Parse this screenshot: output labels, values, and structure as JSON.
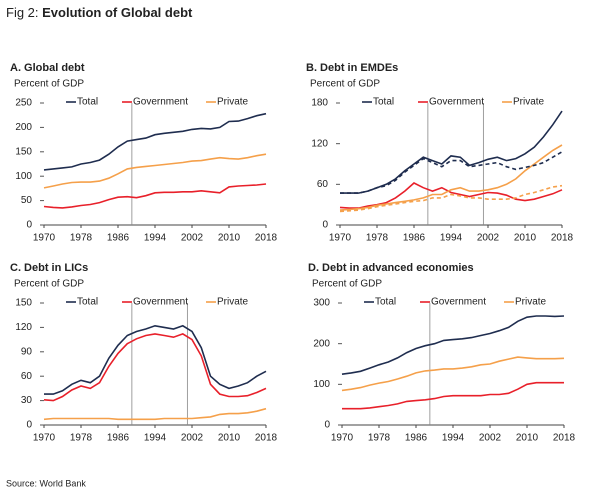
{
  "header": {
    "prefix": "Fig 2:",
    "title": "Evolution of Global debt"
  },
  "source": "Source: World Bank",
  "chart_data": [
    {
      "type": "line",
      "title": "A. Global debt",
      "y_label": "Percent of GDP",
      "x": [
        1970,
        1972,
        1974,
        1976,
        1978,
        1980,
        1982,
        1984,
        1986,
        1988,
        1990,
        1992,
        1994,
        1996,
        1998,
        2000,
        2002,
        2004,
        2006,
        2008,
        2010,
        2012,
        2014,
        2016,
        2018
      ],
      "xlim": [
        1970,
        2018
      ],
      "xticks": [
        1970,
        1978,
        1986,
        1994,
        2002,
        2010,
        2018
      ],
      "ylim": [
        0,
        250
      ],
      "yticks": [
        0,
        50,
        100,
        150,
        200,
        250
      ],
      "vlines": [
        1989
      ],
      "series": [
        {
          "name": "Total",
          "color": "#1f2d4f",
          "values": [
            113,
            115,
            117,
            119,
            125,
            128,
            133,
            145,
            160,
            172,
            175,
            178,
            185,
            188,
            190,
            192,
            196,
            198,
            197,
            200,
            212,
            213,
            218,
            224,
            228
          ]
        },
        {
          "name": "Government",
          "color": "#e8202a",
          "values": [
            38,
            36,
            35,
            37,
            40,
            42,
            46,
            52,
            57,
            58,
            56,
            60,
            66,
            67,
            67,
            68,
            68,
            70,
            68,
            66,
            78,
            80,
            81,
            82,
            84
          ]
        },
        {
          "name": "Private",
          "color": "#f5a04a",
          "values": [
            76,
            80,
            84,
            87,
            88,
            88,
            90,
            96,
            105,
            115,
            118,
            120,
            122,
            124,
            126,
            128,
            131,
            132,
            135,
            138,
            136,
            135,
            138,
            142,
            145
          ]
        }
      ]
    },
    {
      "type": "line",
      "title": "B. Debt in EMDEs",
      "y_label": "Percent of GDP",
      "x": [
        1970,
        1972,
        1974,
        1976,
        1978,
        1980,
        1982,
        1984,
        1986,
        1988,
        1990,
        1992,
        1994,
        1996,
        1998,
        2000,
        2002,
        2004,
        2006,
        2008,
        2010,
        2012,
        2014,
        2016,
        2018
      ],
      "xlim": [
        1970,
        2018
      ],
      "xticks": [
        1970,
        1978,
        1986,
        1994,
        2002,
        2010,
        2018
      ],
      "ylim": [
        0,
        180
      ],
      "yticks": [
        0,
        60,
        120,
        180
      ],
      "vlines": [
        1989,
        2001
      ],
      "series": [
        {
          "name": "Total",
          "color": "#1f2d4f",
          "values": [
            47,
            47,
            47,
            50,
            55,
            60,
            68,
            80,
            90,
            100,
            95,
            90,
            102,
            100,
            88,
            92,
            97,
            100,
            95,
            98,
            105,
            115,
            130,
            148,
            168
          ]
        },
        {
          "name": "Government",
          "color": "#e8202a",
          "values": [
            26,
            25,
            25,
            28,
            30,
            33,
            40,
            50,
            62,
            55,
            50,
            55,
            48,
            45,
            42,
            45,
            48,
            47,
            44,
            38,
            36,
            38,
            42,
            46,
            52
          ]
        },
        {
          "name": "Private",
          "color": "#f5a04a",
          "values": [
            22,
            23,
            24,
            26,
            29,
            31,
            33,
            35,
            37,
            40,
            45,
            45,
            52,
            55,
            50,
            50,
            52,
            55,
            60,
            68,
            80,
            90,
            100,
            110,
            118
          ]
        },
        {
          "color": "#1f2d4f",
          "dash": true,
          "values": [
            47,
            47,
            47,
            50,
            55,
            58,
            66,
            78,
            88,
            98,
            92,
            86,
            95,
            95,
            86,
            88,
            90,
            92,
            86,
            82,
            85,
            88,
            92,
            100,
            108
          ]
        },
        {
          "color": "#f5a04a",
          "dash": true,
          "values": [
            20,
            21,
            22,
            24,
            27,
            29,
            31,
            33,
            35,
            36,
            40,
            40,
            45,
            43,
            40,
            40,
            38,
            38,
            38,
            40,
            45,
            48,
            52,
            56,
            58
          ]
        }
      ]
    },
    {
      "type": "line",
      "title": "C. Debt in LICs",
      "y_label": "Percent of GDP",
      "x": [
        1970,
        1972,
        1974,
        1976,
        1978,
        1980,
        1982,
        1984,
        1986,
        1988,
        1990,
        1992,
        1994,
        1996,
        1998,
        2000,
        2002,
        2004,
        2006,
        2008,
        2010,
        2012,
        2014,
        2016,
        2018
      ],
      "xlim": [
        1970,
        2018
      ],
      "xticks": [
        1970,
        1978,
        1986,
        1994,
        2002,
        2010,
        2018
      ],
      "ylim": [
        0,
        150
      ],
      "yticks": [
        0,
        30,
        60,
        90,
        120,
        150
      ],
      "vlines": [
        1989,
        2001
      ],
      "series": [
        {
          "name": "Total",
          "color": "#1f2d4f",
          "values": [
            38,
            38,
            42,
            50,
            55,
            52,
            60,
            82,
            98,
            110,
            115,
            118,
            122,
            120,
            118,
            122,
            115,
            95,
            60,
            50,
            45,
            48,
            52,
            60,
            66
          ]
        },
        {
          "name": "Government",
          "color": "#e8202a",
          "values": [
            31,
            30,
            35,
            43,
            48,
            45,
            52,
            72,
            88,
            100,
            106,
            110,
            112,
            110,
            108,
            112,
            105,
            85,
            50,
            38,
            35,
            35,
            36,
            40,
            45
          ]
        },
        {
          "name": "Private",
          "color": "#f5a04a",
          "values": [
            7,
            8,
            8,
            8,
            8,
            8,
            8,
            8,
            7,
            7,
            7,
            7,
            7,
            8,
            8,
            8,
            8,
            9,
            10,
            13,
            14,
            14,
            15,
            17,
            20
          ]
        }
      ]
    },
    {
      "type": "line",
      "title": "D. Debt in advanced economies",
      "y_label": "Percent of GDP",
      "x": [
        1970,
        1972,
        1974,
        1976,
        1978,
        1980,
        1982,
        1984,
        1986,
        1988,
        1990,
        1992,
        1994,
        1996,
        1998,
        2000,
        2002,
        2004,
        2006,
        2008,
        2010,
        2012,
        2014,
        2016,
        2018
      ],
      "xlim": [
        1970,
        2018
      ],
      "xticks": [
        1970,
        1978,
        1986,
        1994,
        2002,
        2010,
        2018
      ],
      "ylim": [
        0,
        300
      ],
      "yticks": [
        0,
        100,
        200,
        300
      ],
      "vlines": [
        1989
      ],
      "series": [
        {
          "name": "Total",
          "color": "#1f2d4f",
          "values": [
            125,
            128,
            132,
            140,
            148,
            155,
            165,
            178,
            188,
            195,
            200,
            208,
            210,
            212,
            215,
            220,
            225,
            232,
            240,
            255,
            265,
            268,
            268,
            267,
            268
          ]
        },
        {
          "name": "Government",
          "color": "#e8202a",
          "values": [
            40,
            40,
            40,
            42,
            45,
            48,
            52,
            58,
            60,
            62,
            65,
            70,
            72,
            72,
            72,
            72,
            75,
            75,
            78,
            88,
            100,
            104,
            104,
            104,
            104
          ]
        },
        {
          "name": "Private",
          "color": "#f5a04a",
          "values": [
            85,
            88,
            92,
            98,
            103,
            107,
            113,
            120,
            128,
            133,
            135,
            138,
            138,
            140,
            143,
            148,
            150,
            157,
            162,
            167,
            165,
            163,
            163,
            163,
            164
          ]
        }
      ]
    }
  ]
}
